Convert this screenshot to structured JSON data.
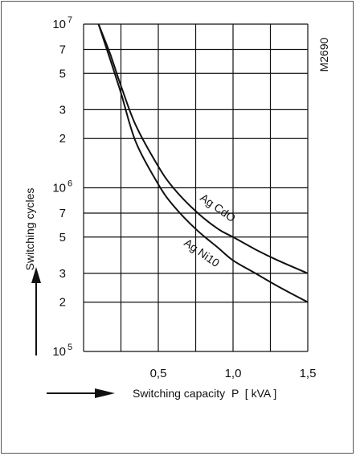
{
  "chart_data": {
    "type": "line",
    "figure_code": "M2690",
    "xlabel": "Switching capacity  P  [ kVA ]",
    "ylabel": "Switching cycles",
    "x_range": [
      0,
      1.5
    ],
    "y_range": [
      100000,
      10000000
    ],
    "y_scale": "log",
    "grid": true,
    "x_ticks": [
      {
        "value": 0.5,
        "label": "0,5"
      },
      {
        "value": 1.0,
        "label": "1,0"
      },
      {
        "value": 1.5,
        "label": "1,5"
      }
    ],
    "y_ticks": [
      {
        "value": 100000,
        "base": "10",
        "exp": "5"
      },
      {
        "value": 200000,
        "label": "2"
      },
      {
        "value": 300000,
        "label": "3"
      },
      {
        "value": 500000,
        "label": "5"
      },
      {
        "value": 700000,
        "label": "7"
      },
      {
        "value": 1000000,
        "base": "10",
        "exp": "6"
      },
      {
        "value": 2000000,
        "label": "2"
      },
      {
        "value": 3000000,
        "label": "3"
      },
      {
        "value": 5000000,
        "label": "5"
      },
      {
        "value": 7000000,
        "label": "7"
      },
      {
        "value": 10000000,
        "base": "10",
        "exp": "7"
      }
    ],
    "x_grid": [
      0.25,
      0.5,
      0.75,
      1.0,
      1.25,
      1.5
    ],
    "y_grid": [
      200000,
      300000,
      500000,
      700000,
      1000000,
      2000000,
      3000000,
      5000000,
      7000000,
      10000000
    ],
    "series": [
      {
        "name": "Ag CdO",
        "x": [
          0.1,
          0.18,
          0.25,
          0.35,
          0.5,
          0.6,
          0.75,
          0.9,
          1.0,
          1.15,
          1.3,
          1.5
        ],
        "y": [
          10000000,
          6500000,
          4200000,
          2400000,
          1350000,
          1000000,
          720000,
          560000,
          500000,
          420000,
          360000,
          300000
        ]
      },
      {
        "name": "Ag Ni10",
        "x": [
          0.1,
          0.18,
          0.25,
          0.35,
          0.5,
          0.6,
          0.75,
          0.9,
          1.0,
          1.15,
          1.3,
          1.5
        ],
        "y": [
          10000000,
          6000000,
          3800000,
          1900000,
          1050000,
          780000,
          560000,
          430000,
          360000,
          300000,
          250000,
          200000
        ]
      }
    ]
  }
}
